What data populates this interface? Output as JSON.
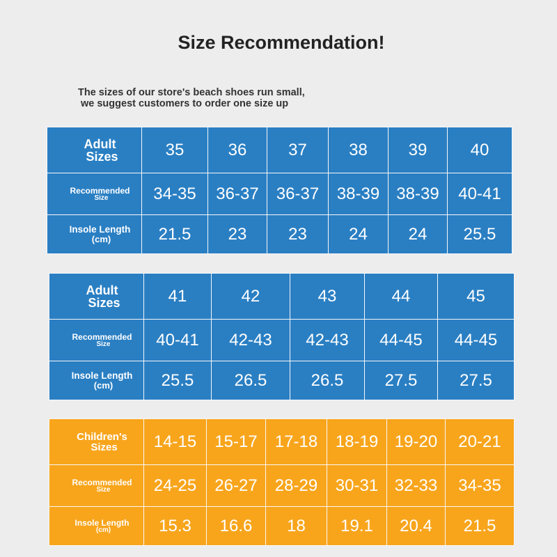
{
  "title": "Size Recommendation!",
  "note": {
    "line1": "The sizes of our store's beach shoes run small,",
    "line2": "we suggest customers to order one size up"
  },
  "colors": {
    "blue": "#2a7fc3",
    "orange": "#f8a51c",
    "background": "#ededee"
  },
  "tables": [
    {
      "rows": [
        {
          "label1": "Adult",
          "label2": "Sizes",
          "values": [
            "35",
            "36",
            "37",
            "38",
            "39",
            "40"
          ]
        },
        {
          "label1": "Recommended",
          "label2": "Size",
          "values": [
            "34-35",
            "36-37",
            "36-37",
            "38-39",
            "38-39",
            "40-41"
          ]
        },
        {
          "label1": "Insole Length",
          "label2": "(cm)",
          "values": [
            "21.5",
            "23",
            "23",
            "24",
            "24",
            "25.5"
          ]
        }
      ]
    },
    {
      "rows": [
        {
          "label1": "Adult",
          "label2": "Sizes",
          "values": [
            "41",
            "42",
            "43",
            "44",
            "45"
          ]
        },
        {
          "label1": "Recommended",
          "label2": "Size",
          "values": [
            "40-41",
            "42-43",
            "42-43",
            "44-45",
            "44-45"
          ]
        },
        {
          "label1": "Insole Length",
          "label2": "(cm)",
          "values": [
            "25.5",
            "26.5",
            "26.5",
            "27.5",
            "27.5"
          ]
        }
      ]
    },
    {
      "rows": [
        {
          "label1": "Children's",
          "label2": "Sizes",
          "values": [
            "14-15",
            "15-17",
            "17-18",
            "18-19",
            "19-20",
            "20-21"
          ]
        },
        {
          "label1": "Recommended",
          "label2": "Size",
          "values": [
            "24-25",
            "26-27",
            "28-29",
            "30-31",
            "32-33",
            "34-35"
          ]
        },
        {
          "label1": "Insole Length",
          "label2": "(cm)",
          "values": [
            "15.3",
            "16.6",
            "18",
            "19.1",
            "20.4",
            "21.5"
          ]
        }
      ]
    }
  ]
}
